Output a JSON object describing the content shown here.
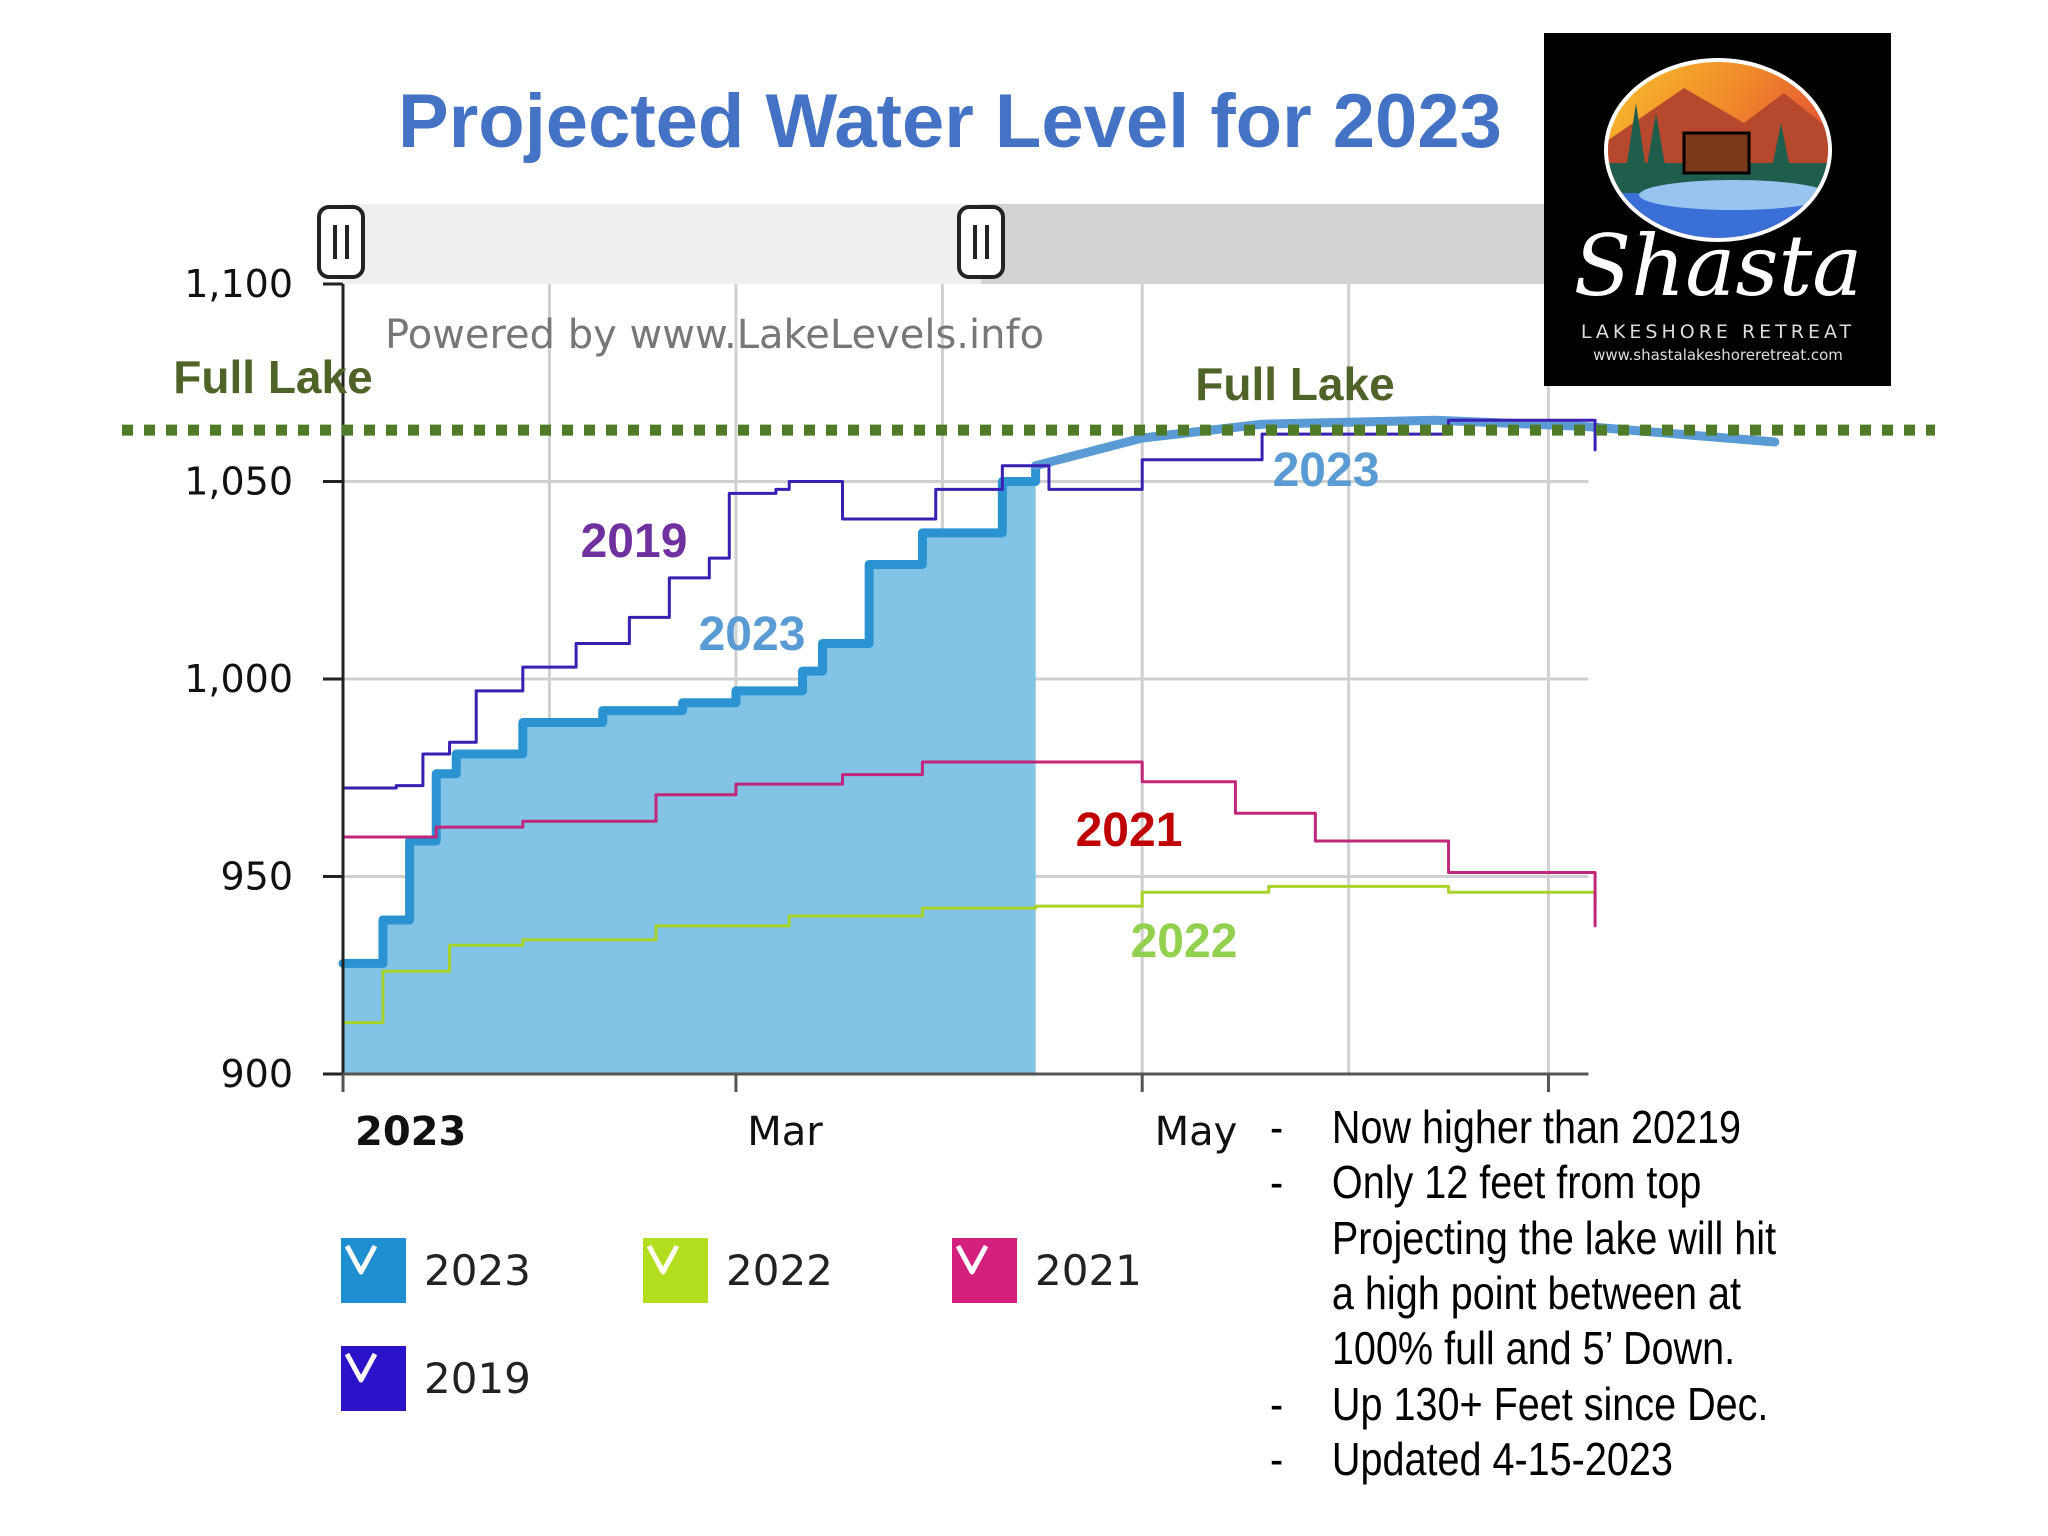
{
  "title": "Projected Water Level for 2023",
  "watermark": "Powered by www.LakeLevels.info",
  "logo": {
    "name": "Shasta",
    "subtitle": "LAKESHORE RETREAT",
    "url": "www.shastalakeshoreretreat.com"
  },
  "chart_data": {
    "type": "area",
    "title": "Projected Water Level for 2023",
    "xlabel": "",
    "ylabel": "",
    "ylim": [
      900,
      1100
    ],
    "xlim": [
      "2023-01-01",
      "2023-07-07"
    ],
    "y_ticks": [
      "1,100",
      "1,050",
      "1,000",
      "950",
      "900"
    ],
    "y_tick_values": [
      1100,
      1050,
      1000,
      950,
      900
    ],
    "x_ticks": [
      {
        "label": "2023",
        "date": "2023-01-01",
        "bold": true
      },
      {
        "label": "Mar",
        "date": "2023-03-01"
      },
      {
        "label": "May",
        "date": "2023-05-01"
      },
      {
        "label": "",
        "date": "2023-07-01"
      }
    ],
    "x_gridlines": [
      "2023-02-01",
      "2023-03-01",
      "2023-04-01",
      "2023-05-01",
      "2023-06-01",
      "2023-07-01"
    ],
    "grid": true,
    "full_lake": {
      "value": 1063,
      "label": "Full Lake",
      "color": "#4f7a28"
    },
    "series": [
      {
        "name": "2023",
        "color": "#2b93d1",
        "fill": "#82c3e6",
        "x": [
          "2023-01-01",
          "2023-01-07",
          "2023-01-11",
          "2023-01-15",
          "2023-01-18",
          "2023-01-28",
          "2023-02-09",
          "2023-02-21",
          "2023-03-01",
          "2023-03-11",
          "2023-03-14",
          "2023-03-21",
          "2023-03-29",
          "2023-04-10",
          "2023-04-15"
        ],
        "y": [
          928,
          939,
          959,
          976,
          981,
          989,
          992,
          994,
          997,
          1002,
          1009,
          1029,
          1037,
          1050,
          1054
        ]
      },
      {
        "name": "2023 projection",
        "color": "#5b9bd5",
        "x": [
          "2023-04-15",
          "2023-05-01",
          "2023-05-19",
          "2023-06-14",
          "2023-07-06",
          "2023-08-04"
        ],
        "y": [
          1054,
          1061,
          1064.5,
          1065.5,
          1064,
          1060
        ]
      },
      {
        "name": "2022",
        "color": "#a8d32a",
        "x": [
          "2023-01-01",
          "2023-01-07",
          "2023-01-17",
          "2023-01-28",
          "2023-02-17",
          "2023-03-09",
          "2023-03-29",
          "2023-04-15",
          "2023-05-01",
          "2023-05-20",
          "2023-06-16",
          "2023-07-08"
        ],
        "y": [
          913,
          926,
          932.6,
          934,
          937.5,
          940,
          942,
          942.5,
          946,
          947.5,
          946,
          943
        ]
      },
      {
        "name": "2021",
        "color": "#c0267a",
        "x": [
          "2023-01-01",
          "2023-01-15",
          "2023-01-28",
          "2023-02-17",
          "2023-03-01",
          "2023-03-17",
          "2023-03-29",
          "2023-04-15",
          "2023-05-01",
          "2023-05-15",
          "2023-05-27",
          "2023-06-16",
          "2023-07-08"
        ],
        "y": [
          960,
          962.5,
          964,
          970.7,
          973.4,
          975.8,
          979,
          979,
          974,
          966,
          959,
          951,
          937.5
        ]
      },
      {
        "name": "2019",
        "color": "#3a1fb5",
        "x": [
          "2023-01-01",
          "2023-01-09",
          "2023-01-13",
          "2023-01-17",
          "2023-01-21",
          "2023-01-28",
          "2023-02-05",
          "2023-02-13",
          "2023-02-19",
          "2023-02-25",
          "2023-02-28",
          "2023-03-07",
          "2023-03-09",
          "2023-03-17",
          "2023-03-23",
          "2023-03-31",
          "2023-04-10",
          "2023-04-17",
          "2023-05-01",
          "2023-05-19",
          "2023-06-16",
          "2023-07-08"
        ],
        "y": [
          972.4,
          973,
          981,
          984,
          997,
          1003,
          1009,
          1015.6,
          1025.6,
          1030.6,
          1047,
          1048,
          1050,
          1040.5,
          1040.5,
          1048,
          1054,
          1048,
          1055.5,
          1062,
          1065.5,
          1058
        ]
      }
    ],
    "annotations": [
      {
        "text": "2019",
        "color": "#7030a0"
      },
      {
        "text": "2023",
        "color": "#5b9bd5"
      },
      {
        "text": "2021",
        "color": "#c00000"
      },
      {
        "text": "2022",
        "color": "#92d050"
      },
      {
        "text": "2023",
        "color": "#5b9bd5"
      },
      {
        "text": "Full Lake",
        "color": "#4f6228"
      },
      {
        "text": "Full Lake",
        "color": "#4f6228"
      }
    ],
    "legend": {
      "placement": "bottom-left",
      "items": [
        {
          "label": "2023",
          "color": "#1f8fd1",
          "checked": true
        },
        {
          "label": "2022",
          "color": "#b3dd1f",
          "checked": true
        },
        {
          "label": "2021",
          "color": "#d41f7c",
          "checked": true
        },
        {
          "label": "2019",
          "color": "#2a13c9",
          "checked": true
        }
      ]
    }
  },
  "notes": [
    {
      "dash": "-",
      "text": "Now higher than 20219"
    },
    {
      "dash": "-",
      "text": "Only 12 feet from top"
    },
    {
      "dash": "",
      "text": "Projecting the lake will hit"
    },
    {
      "dash": "",
      "text": "a high point between at"
    },
    {
      "dash": "",
      "text": "100% full and 5’ Down."
    },
    {
      "dash": "-",
      "text": "Up 130+ Feet since Dec."
    },
    {
      "dash": "-",
      "text": "Updated 4-15-2023"
    }
  ]
}
